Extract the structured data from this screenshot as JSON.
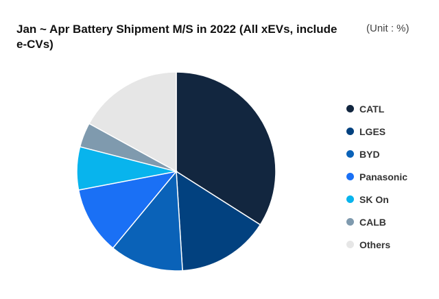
{
  "title": "Jan ~ Apr Battery Shipment M/S in 2022 (All xEVs, include e-CVs)",
  "unit": "(Unit : %)",
  "chart_data": {
    "type": "pie",
    "title": "Jan ~ Apr Battery Shipment M/S in 2022 (All xEVs, include e-CVs)",
    "unit": "%",
    "legend_position": "right",
    "slices": [
      {
        "name": "CATL",
        "value": 34.0,
        "color": "#12263f"
      },
      {
        "name": "LGES",
        "value": 15.0,
        "color": "#02417f"
      },
      {
        "name": "BYD",
        "value": 12.0,
        "color": "#0a62b8"
      },
      {
        "name": "Panasonic",
        "value": 11.0,
        "color": "#1a70f5"
      },
      {
        "name": "SK On",
        "value": 7.0,
        "color": "#08b4ed"
      },
      {
        "name": "CALB",
        "value": 4.0,
        "color": "#7f9aae"
      },
      {
        "name": "Others",
        "value": 17.0,
        "color": "#e6e6e6"
      }
    ]
  }
}
